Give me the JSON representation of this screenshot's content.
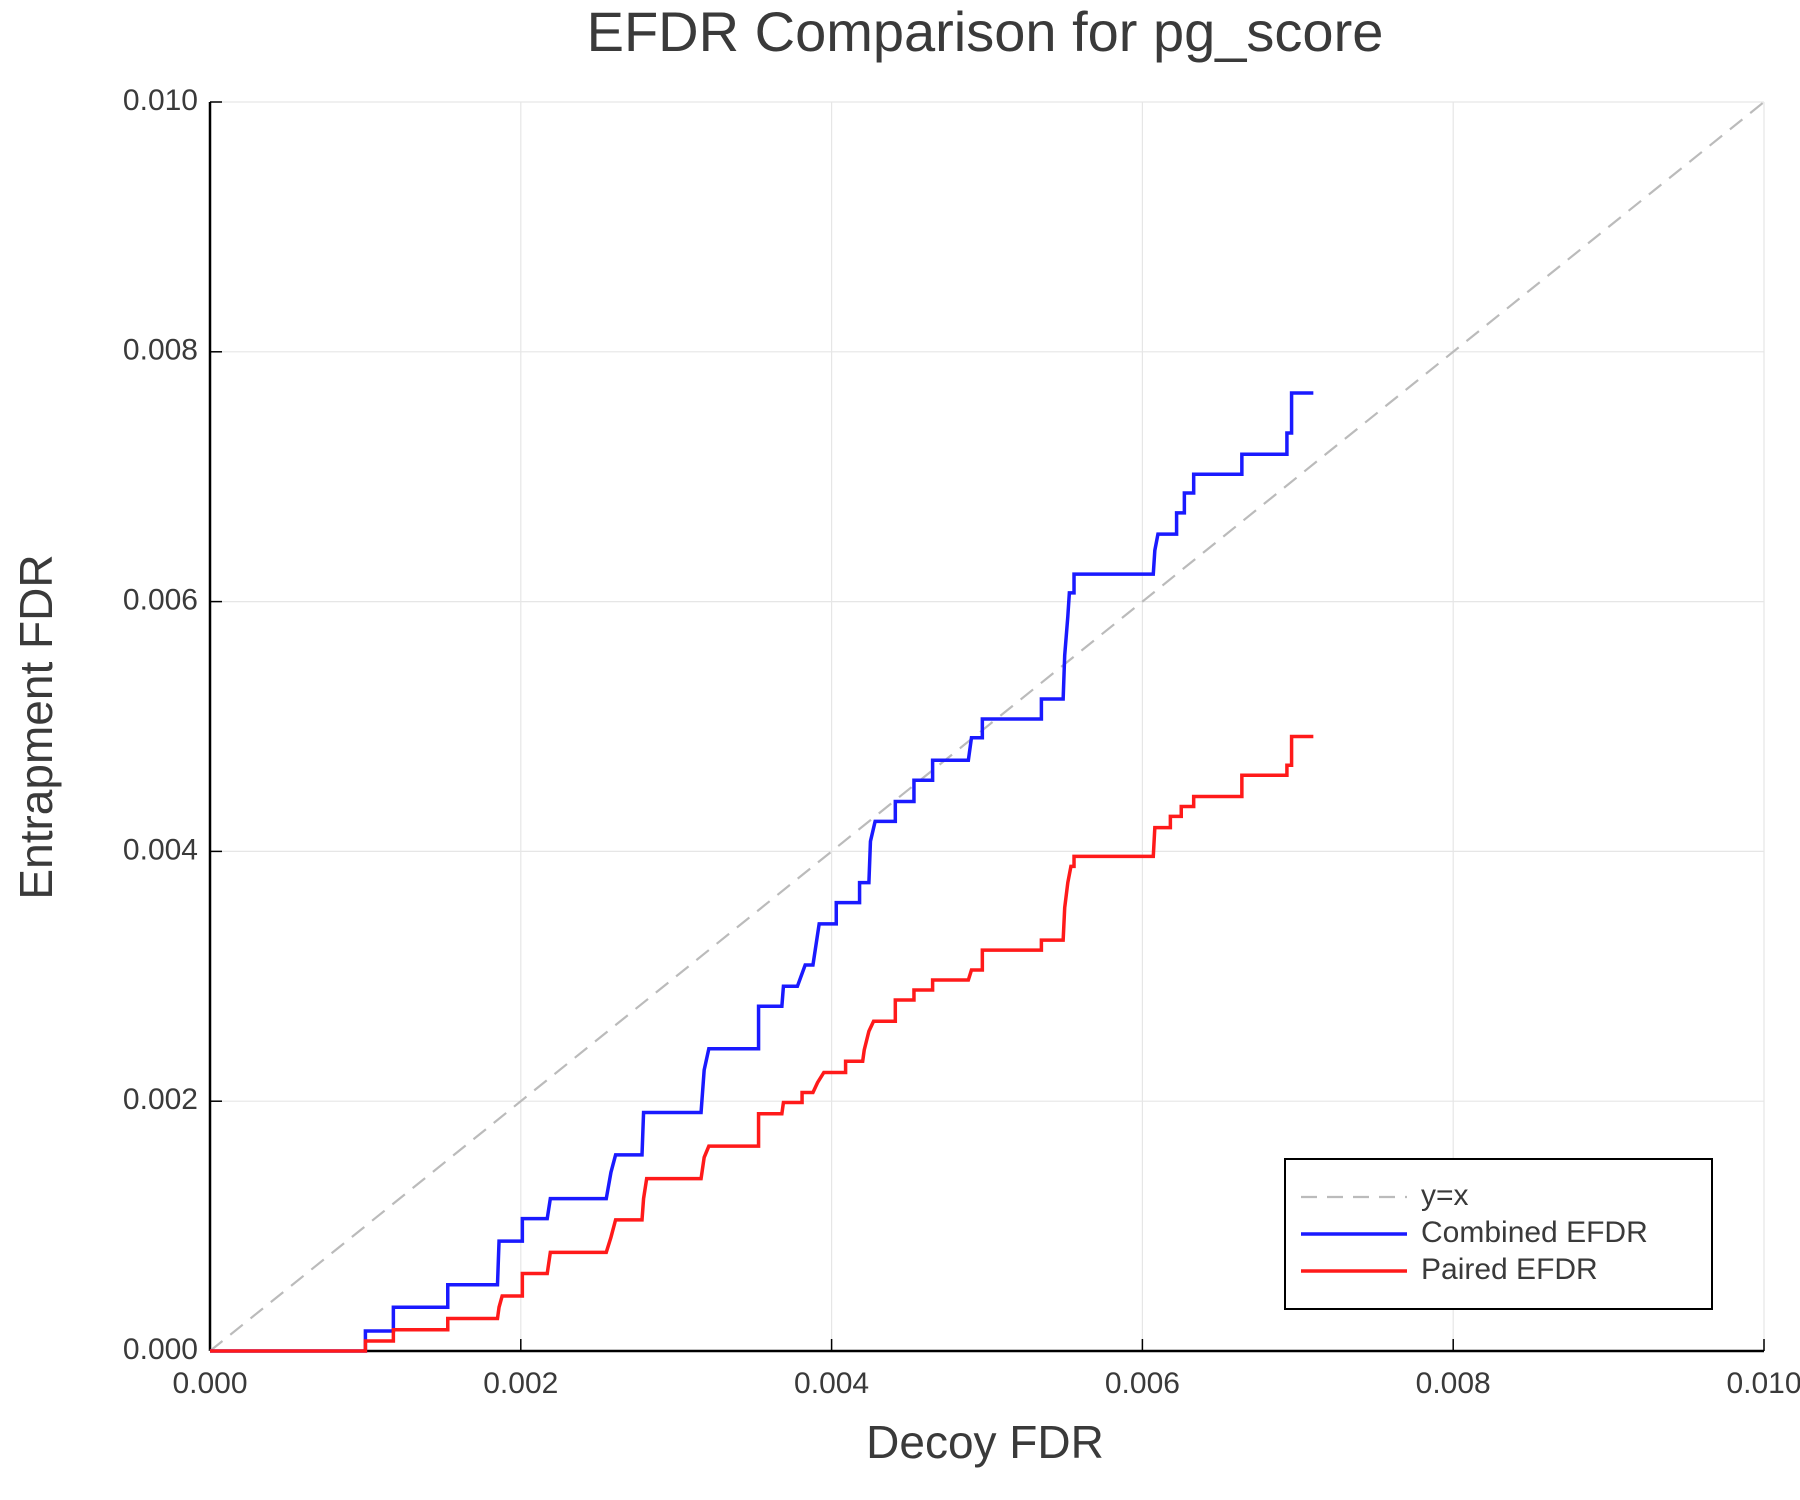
{
  "chart_data": {
    "type": "line",
    "title": "EFDR Comparison for pg_score",
    "x_label": "Decoy FDR",
    "y_label": "Entrapment FDR",
    "xlim": [
      0,
      0.01
    ],
    "ylim": [
      0,
      0.01
    ],
    "xticks": [
      {
        "value": 0,
        "label": "0.000"
      },
      {
        "value": 0.002,
        "label": "0.002"
      },
      {
        "value": 0.004,
        "label": "0.004"
      },
      {
        "value": 0.006,
        "label": "0.006"
      },
      {
        "value": 0.008,
        "label": "0.008"
      },
      {
        "value": 0.01,
        "label": "0.010"
      }
    ],
    "yticks": [
      {
        "value": 0,
        "label": "0.000"
      },
      {
        "value": 0.002,
        "label": "0.002"
      },
      {
        "value": 0.004,
        "label": "0.004"
      },
      {
        "value": 0.006,
        "label": "0.006"
      },
      {
        "value": 0.008,
        "label": "0.008"
      },
      {
        "value": 0.01,
        "label": "0.010"
      }
    ],
    "grid": true,
    "legend": "lower right",
    "series": [
      {
        "name": "y=x",
        "color": "#bbbbbb",
        "dashed": true,
        "x": [
          0,
          0.01
        ],
        "values": [
          0,
          0.01
        ]
      },
      {
        "name": "Combined EFDR",
        "color": "#1a1aff",
        "dashed": false,
        "x": [
          0,
          0.001,
          0.001,
          0.00118,
          0.00118,
          0.00153,
          0.00153,
          0.00185,
          0.00186,
          0.00201,
          0.00201,
          0.00217,
          0.00219,
          0.00255,
          0.00258,
          0.00261,
          0.00278,
          0.00279,
          0.00316,
          0.00318,
          0.00321,
          0.00353,
          0.00353,
          0.00368,
          0.00369,
          0.00378,
          0.00383,
          0.00388,
          0.00392,
          0.00403,
          0.00403,
          0.00418,
          0.00418,
          0.00424,
          0.00425,
          0.00428,
          0.00441,
          0.00441,
          0.00453,
          0.00453,
          0.00465,
          0.00465,
          0.00488,
          0.0049,
          0.00497,
          0.00497,
          0.00535,
          0.00535,
          0.00549,
          0.0055,
          0.00552,
          0.00553,
          0.00556,
          0.00556,
          0.00607,
          0.00608,
          0.0061,
          0.00622,
          0.00622,
          0.00627,
          0.00627,
          0.00633,
          0.00633,
          0.00664,
          0.00664,
          0.00693,
          0.00693,
          0.00696,
          0.00696,
          0.0071
        ],
        "values": [
          0,
          0,
          0.00016,
          0.00016,
          0.00035,
          0.00035,
          0.00053,
          0.00053,
          0.00088,
          0.00088,
          0.00106,
          0.00106,
          0.00122,
          0.00122,
          0.00143,
          0.00157,
          0.00157,
          0.00191,
          0.00191,
          0.00225,
          0.00242,
          0.00242,
          0.00276,
          0.00276,
          0.00292,
          0.00292,
          0.00309,
          0.00309,
          0.00342,
          0.00342,
          0.00359,
          0.00359,
          0.00375,
          0.00375,
          0.00408,
          0.00424,
          0.00424,
          0.0044,
          0.0044,
          0.00457,
          0.00457,
          0.00473,
          0.00473,
          0.00491,
          0.00491,
          0.00506,
          0.00506,
          0.00522,
          0.00522,
          0.00557,
          0.00588,
          0.00607,
          0.00607,
          0.00622,
          0.00622,
          0.00641,
          0.00654,
          0.00654,
          0.00671,
          0.00671,
          0.00687,
          0.00687,
          0.00702,
          0.00702,
          0.00718,
          0.00718,
          0.00735,
          0.00735,
          0.00767,
          0.00767
        ]
      },
      {
        "name": "Paired EFDR",
        "color": "#ff1a1a",
        "dashed": false,
        "x": [
          0,
          0.001,
          0.001,
          0.00118,
          0.00118,
          0.00153,
          0.00153,
          0.00185,
          0.00186,
          0.00188,
          0.00201,
          0.00201,
          0.00217,
          0.00219,
          0.00255,
          0.00258,
          0.00261,
          0.00278,
          0.00279,
          0.00281,
          0.00316,
          0.00318,
          0.00321,
          0.00353,
          0.00353,
          0.00368,
          0.00369,
          0.00381,
          0.00381,
          0.00388,
          0.00391,
          0.00395,
          0.00409,
          0.00409,
          0.0042,
          0.00421,
          0.00424,
          0.00427,
          0.00441,
          0.00441,
          0.00453,
          0.00453,
          0.00465,
          0.00465,
          0.00488,
          0.0049,
          0.00497,
          0.00497,
          0.00535,
          0.00535,
          0.00549,
          0.0055,
          0.00552,
          0.00554,
          0.00556,
          0.00556,
          0.00607,
          0.00608,
          0.00618,
          0.00618,
          0.00625,
          0.00625,
          0.00633,
          0.00633,
          0.00664,
          0.00664,
          0.00693,
          0.00693,
          0.00696,
          0.00696,
          0.0071
        ],
        "values": [
          0,
          0,
          8e-05,
          8e-05,
          0.00017,
          0.00017,
          0.00026,
          0.00026,
          0.00035,
          0.00044,
          0.00044,
          0.00062,
          0.00062,
          0.00079,
          0.00079,
          0.00091,
          0.00105,
          0.00105,
          0.00122,
          0.00138,
          0.00138,
          0.00155,
          0.00164,
          0.00164,
          0.0019,
          0.0019,
          0.00199,
          0.00199,
          0.00207,
          0.00207,
          0.00215,
          0.00223,
          0.00223,
          0.00232,
          0.00232,
          0.00241,
          0.00256,
          0.00264,
          0.00264,
          0.00281,
          0.00281,
          0.00289,
          0.00289,
          0.00297,
          0.00297,
          0.00305,
          0.00305,
          0.00321,
          0.00321,
          0.00329,
          0.00329,
          0.00355,
          0.00375,
          0.00388,
          0.00388,
          0.00396,
          0.00396,
          0.00419,
          0.00419,
          0.00428,
          0.00428,
          0.00436,
          0.00436,
          0.00444,
          0.00444,
          0.00461,
          0.00461,
          0.00469,
          0.00469,
          0.00492,
          0.00492
        ]
      }
    ]
  }
}
